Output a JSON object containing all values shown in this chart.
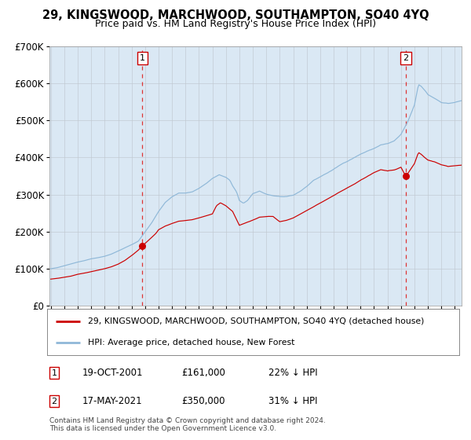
{
  "title": "29, KINGSWOOD, MARCHWOOD, SOUTHAMPTON, SO40 4YQ",
  "subtitle": "Price paid vs. HM Land Registry's House Price Index (HPI)",
  "legend_line1": "29, KINGSWOOD, MARCHWOOD, SOUTHAMPTON, SO40 4YQ (detached house)",
  "legend_line2": "HPI: Average price, detached house, New Forest",
  "annotation1_date": "19-OCT-2001",
  "annotation1_price": "£161,000",
  "annotation1_hpi": "22% ↓ HPI",
  "annotation2_date": "17-MAY-2021",
  "annotation2_price": "£350,000",
  "annotation2_hpi": "31% ↓ HPI",
  "footer": "Contains HM Land Registry data © Crown copyright and database right 2024.\nThis data is licensed under the Open Government Licence v3.0.",
  "hpi_color": "#8FB8D8",
  "price_color": "#CC0000",
  "marker_color": "#CC0000",
  "vline_color": "#DD3333",
  "background_color": "#DAE8F4",
  "grid_color": "#C0C8D0",
  "ylim": [
    0,
    700000
  ],
  "yticks": [
    0,
    100000,
    200000,
    300000,
    400000,
    500000,
    600000,
    700000
  ],
  "ytick_labels": [
    "£0",
    "£100K",
    "£200K",
    "£300K",
    "£400K",
    "£500K",
    "£600K",
    "£700K"
  ],
  "sale1_x": 2001.79,
  "sale1_y": 161000,
  "sale2_x": 2021.37,
  "sale2_y": 350000,
  "xmin": 1994.9,
  "xmax": 2025.5
}
